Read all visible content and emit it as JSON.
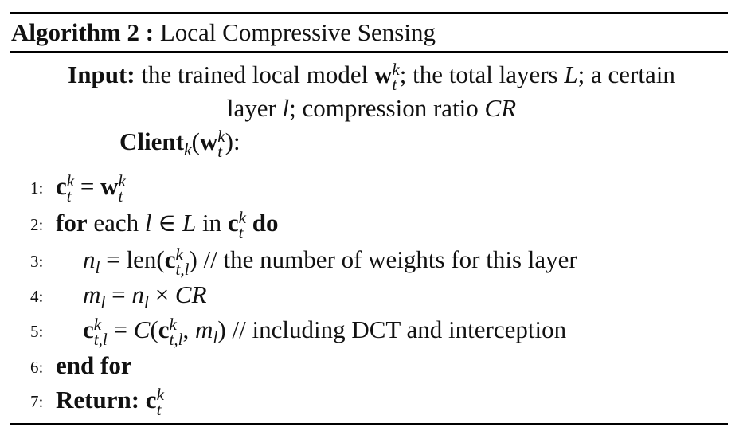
{
  "algorithm": {
    "label": "Algorithm 2 :",
    "name": "Local Compressive Sensing"
  },
  "input": {
    "label": "Input:",
    "line1_a": "the trained local model ",
    "w": "w",
    "k": "k",
    "t": "t",
    "line1_b": "; the total layers ",
    "L": "L",
    "line1_c": "; a certain",
    "line2_a": "layer ",
    "l": "l",
    "line2_b": "; compression ratio ",
    "CR": "CR"
  },
  "client": {
    "label": "Client",
    "sub": "k",
    "open": "(",
    "w": "w",
    "sup": "k",
    "tsub": "t",
    "close": "):"
  },
  "steps": [
    {
      "num": "1:",
      "text": "c_t^k = w_t^k"
    },
    {
      "num": "2:",
      "text": "for each l ∈ L in c_t^k do"
    },
    {
      "num": "3:",
      "text": "n_l = len(c_{t,l}^k) // the number of weights for this layer"
    },
    {
      "num": "4:",
      "text": "m_l = n_l × CR"
    },
    {
      "num": "5:",
      "text": "c_{t,l}^k = C(c_{t,l}^k, m_l) // including DCT and interception"
    },
    {
      "num": "6:",
      "text": "end for"
    },
    {
      "num": "7:",
      "text": "Return: c_t^k"
    }
  ],
  "tokens": {
    "c": "c",
    "w": "w",
    "k": "k",
    "t": "t",
    "tl": "t,l",
    "l": "l",
    "L": "L",
    "eq": " = ",
    "for": "for",
    "each": " each ",
    "in_elem": " ∈ ",
    "in": " in ",
    "do": " do",
    "n": "n",
    "m": "m",
    "len": "len(",
    "close": ")",
    "comment3": " // the number of weights for this layer",
    "times": " × ",
    "CR": "CR",
    "C": "C",
    "open": "(",
    "comma": ", ",
    "comment5": " // including DCT and interception",
    "endfor": "end for",
    "return": "Return:",
    "space": " "
  }
}
